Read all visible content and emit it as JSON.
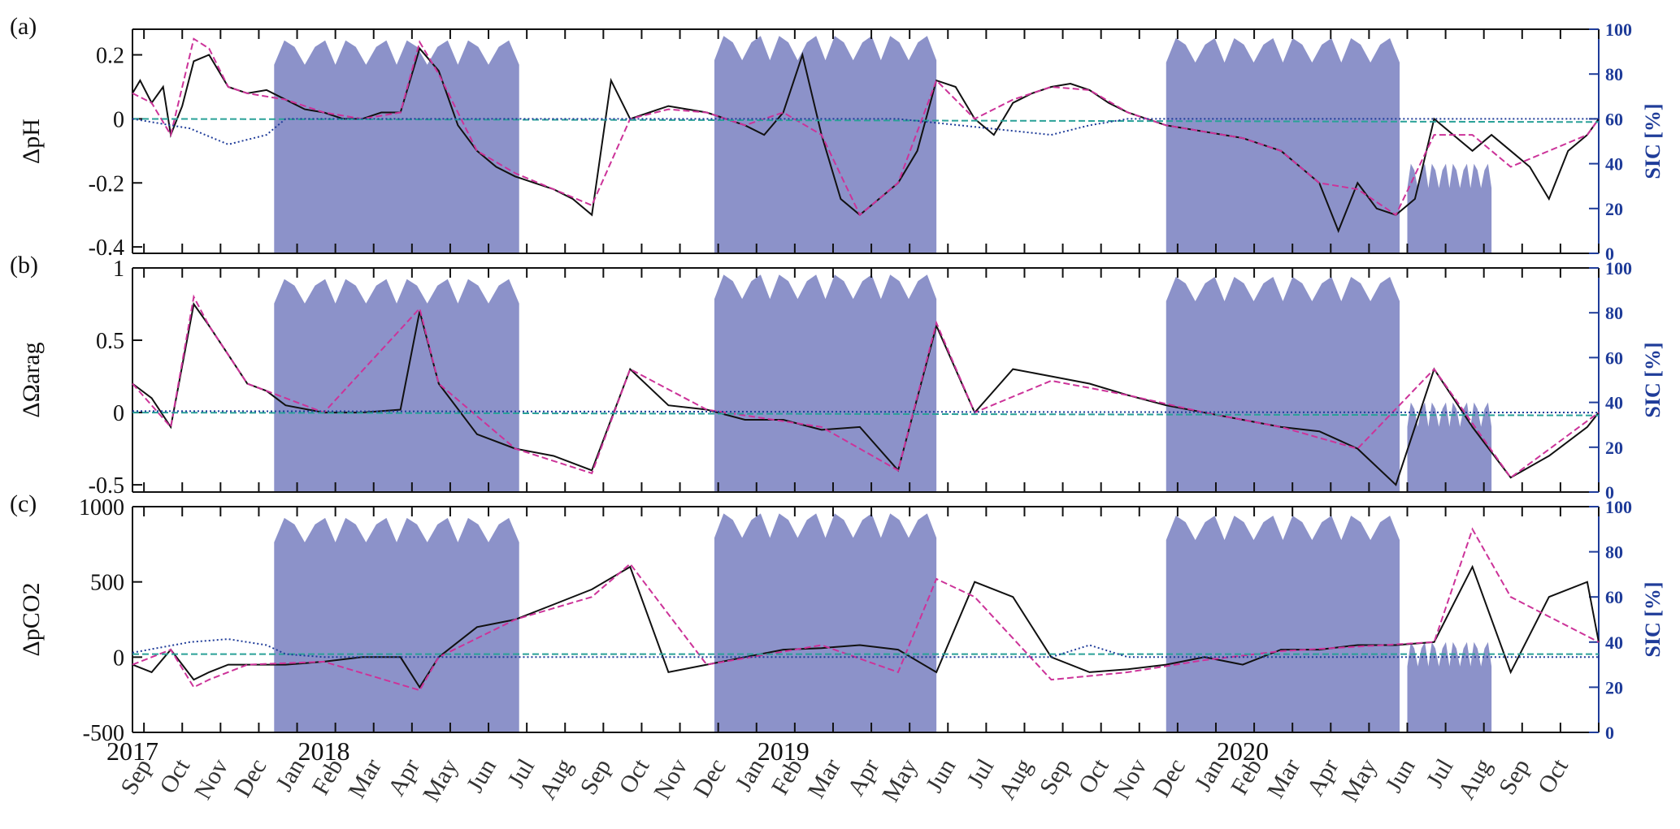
{
  "chart_data": [
    {
      "type": "line",
      "panel": "(a)",
      "ylabel": "ΔpH",
      "ylim": [
        -0.42,
        0.28
      ],
      "yticks": [
        -0.4,
        -0.2,
        0,
        0.2
      ],
      "ytick_labels": [
        "-0.4",
        "-0.2",
        "0",
        "0.2"
      ],
      "y2label": "SIC [%]",
      "y2lim": [
        0,
        100
      ],
      "y2ticks": [
        "0",
        "20",
        "40",
        "60",
        "80",
        "100"
      ],
      "series": [
        {
          "role": "black-solid",
          "color": "#111111",
          "x": [
            0,
            0.2,
            0.5,
            0.8,
            1.0,
            1.3,
            1.6,
            2.0,
            2.5,
            3.0,
            3.5,
            4.0,
            4.5,
            5.0,
            5.5,
            6.0,
            6.5,
            7.0,
            7.5,
            8.0,
            8.5,
            9.0,
            9.5,
            10.0,
            10.5,
            11.0,
            11.5,
            12.0,
            12.5,
            13.0,
            13.5,
            14.0,
            14.5,
            15.0,
            15.5,
            16.0,
            16.5,
            17.0,
            17.5,
            18.0,
            18.5,
            19.0,
            19.5,
            20.0,
            20.5,
            21.0,
            21.5,
            22.0,
            22.5,
            23.0,
            23.5,
            24.0,
            24.5,
            25.0,
            25.5,
            26.0,
            26.5,
            27.0,
            27.5,
            28.0,
            28.5,
            29.0,
            29.5,
            30.0,
            30.5,
            31.0,
            31.5,
            32.0,
            32.5,
            33.0,
            33.5,
            34.0,
            34.5,
            35.0,
            35.5,
            36.0,
            36.5,
            37.0,
            37.5,
            38.0,
            38.3
          ],
          "y": [
            0.08,
            0.12,
            0.05,
            0.1,
            -0.05,
            0.04,
            0.18,
            0.2,
            0.1,
            0.08,
            0.09,
            0.06,
            0.03,
            0.02,
            0.0,
            0.0,
            0.02,
            0.02,
            0.22,
            0.15,
            -0.02,
            -0.1,
            -0.15,
            -0.18,
            -0.2,
            -0.22,
            -0.25,
            -0.3,
            0.12,
            0.0,
            0.02,
            0.04,
            0.03,
            0.02,
            0.0,
            -0.02,
            -0.05,
            0.02,
            0.2,
            -0.05,
            -0.25,
            -0.3,
            -0.25,
            -0.2,
            -0.1,
            0.12,
            0.1,
            0.0,
            -0.05,
            0.05,
            0.08,
            0.1,
            0.11,
            0.09,
            0.05,
            0.02,
            0.0,
            -0.02,
            -0.03,
            -0.04,
            -0.05,
            -0.06,
            -0.08,
            -0.1,
            -0.15,
            -0.2,
            -0.35,
            -0.2,
            -0.28,
            -0.3,
            -0.25,
            0.0,
            -0.05,
            -0.1,
            -0.05,
            -0.1,
            -0.15,
            -0.25,
            -0.1,
            -0.05,
            0.0
          ]
        },
        {
          "role": "magenta-dashed",
          "color": "#cc3399",
          "x": [
            0,
            0.5,
            1.0,
            1.6,
            2.0,
            2.5,
            3.0,
            4.0,
            5.0,
            6.0,
            7.0,
            7.5,
            8.0,
            9.0,
            10.0,
            11.0,
            12.0,
            13.0,
            14.0,
            15.0,
            16.0,
            17.0,
            18.0,
            19.0,
            20.0,
            21.0,
            22.0,
            23.0,
            24.0,
            25.0,
            26.0,
            27.0,
            28.0,
            29.0,
            30.0,
            31.0,
            32.0,
            33.0,
            34.0,
            35.0,
            36.0,
            37.0,
            38.0,
            38.3
          ],
          "y": [
            0.08,
            0.05,
            -0.05,
            0.25,
            0.22,
            0.1,
            0.08,
            0.06,
            0.02,
            0.0,
            0.02,
            0.24,
            0.14,
            -0.1,
            -0.17,
            -0.22,
            -0.27,
            0.0,
            0.03,
            0.02,
            -0.02,
            0.02,
            -0.05,
            -0.3,
            -0.2,
            0.12,
            0.0,
            0.06,
            0.1,
            0.09,
            0.02,
            -0.02,
            -0.04,
            -0.06,
            -0.1,
            -0.2,
            -0.22,
            -0.3,
            -0.05,
            -0.05,
            -0.15,
            -0.1,
            -0.05,
            0.0
          ]
        },
        {
          "role": "teal-dashed",
          "color": "#2aa198",
          "x": [
            0,
            38.3
          ],
          "y": [
            0.0,
            -0.01
          ]
        },
        {
          "role": "blue-dotted",
          "color": "#1f3c99",
          "x": [
            0,
            1.5,
            2.5,
            3.5,
            4.0,
            5.0,
            10.0,
            20.0,
            24.0,
            25.0,
            26.0,
            30.0,
            38.3
          ],
          "y": [
            0.0,
            -0.03,
            -0.08,
            -0.05,
            0.0,
            0.0,
            0.0,
            0.0,
            -0.05,
            -0.02,
            0.0,
            0.0,
            0.0
          ]
        }
      ]
    },
    {
      "type": "line",
      "panel": "(b)",
      "ylabel": "ΔΩarag",
      "ylim": [
        -0.55,
        1.0
      ],
      "yticks": [
        -0.5,
        0,
        0.5,
        1
      ],
      "ytick_labels": [
        "-0.5",
        "0",
        "0.5",
        "1"
      ],
      "y2label": "SIC [%]",
      "y2lim": [
        0,
        100
      ],
      "y2ticks": [
        "0",
        "20",
        "40",
        "60",
        "80",
        "100"
      ],
      "series": [
        {
          "role": "black-solid",
          "color": "#111111",
          "x": [
            0,
            0.5,
            1.0,
            1.6,
            2.0,
            2.5,
            3.0,
            3.5,
            4.0,
            5.0,
            6.0,
            7.0,
            7.5,
            8.0,
            9.0,
            10.0,
            11.0,
            12.0,
            13.0,
            14.0,
            15.0,
            16.0,
            17.0,
            18.0,
            19.0,
            20.0,
            21.0,
            22.0,
            23.0,
            24.0,
            25.0,
            26.0,
            27.0,
            28.0,
            29.0,
            30.0,
            31.0,
            32.0,
            33.0,
            34.0,
            35.0,
            36.0,
            37.0,
            38.0,
            38.3
          ],
          "y": [
            0.2,
            0.1,
            -0.1,
            0.75,
            0.6,
            0.4,
            0.2,
            0.15,
            0.05,
            0.0,
            0.0,
            0.02,
            0.7,
            0.2,
            -0.15,
            -0.25,
            -0.3,
            -0.4,
            0.3,
            0.05,
            0.02,
            -0.05,
            -0.05,
            -0.12,
            -0.1,
            -0.4,
            0.6,
            0.0,
            0.3,
            0.25,
            0.2,
            0.12,
            0.05,
            0.0,
            -0.05,
            -0.1,
            -0.13,
            -0.25,
            -0.5,
            0.3,
            -0.1,
            -0.45,
            -0.3,
            -0.1,
            0.0
          ]
        },
        {
          "role": "magenta-dashed",
          "color": "#cc3399",
          "x": [
            0,
            1.0,
            1.6,
            2.0,
            3.0,
            5.0,
            7.5,
            8.0,
            10.0,
            12.0,
            13.0,
            15.0,
            18.0,
            20.0,
            21.0,
            22.0,
            24.0,
            26.0,
            28.0,
            30.0,
            32.0,
            34.0,
            36.0,
            38.3
          ],
          "y": [
            0.2,
            -0.1,
            0.8,
            0.6,
            0.2,
            0.0,
            0.72,
            0.2,
            -0.25,
            -0.42,
            0.3,
            0.02,
            -0.1,
            -0.4,
            0.62,
            0.0,
            0.22,
            0.12,
            0.0,
            -0.1,
            -0.25,
            0.3,
            -0.45,
            0.0
          ]
        },
        {
          "role": "teal-dashed",
          "color": "#2aa198",
          "x": [
            0,
            38.3
          ],
          "y": [
            0.0,
            -0.02
          ]
        },
        {
          "role": "blue-dotted",
          "color": "#1f3c99",
          "x": [
            0,
            38.3
          ],
          "y": [
            0.01,
            0.0
          ]
        }
      ]
    },
    {
      "type": "line",
      "panel": "(c)",
      "ylabel": "ΔpCO2",
      "ylim": [
        -500,
        1000
      ],
      "yticks": [
        -500,
        0,
        500,
        1000
      ],
      "ytick_labels": [
        "-500",
        "0",
        "500",
        "1000"
      ],
      "y2label": "SIC [%]",
      "y2lim": [
        0,
        100
      ],
      "y2ticks": [
        "0",
        "20",
        "40",
        "60",
        "80",
        "100"
      ],
      "series": [
        {
          "role": "black-solid",
          "color": "#111111",
          "x": [
            0,
            0.5,
            1.0,
            1.6,
            2.0,
            2.5,
            3.0,
            4.0,
            5.0,
            6.0,
            7.0,
            7.5,
            8.0,
            9.0,
            10.0,
            11.0,
            12.0,
            13.0,
            14.0,
            15.0,
            16.0,
            17.0,
            18.0,
            19.0,
            20.0,
            21.0,
            22.0,
            23.0,
            24.0,
            25.0,
            26.0,
            27.0,
            28.0,
            29.0,
            30.0,
            31.0,
            32.0,
            33.0,
            34.0,
            35.0,
            36.0,
            37.0,
            38.0,
            38.3
          ],
          "y": [
            -50,
            -100,
            50,
            -150,
            -100,
            -50,
            -50,
            -50,
            -30,
            0,
            0,
            -200,
            0,
            200,
            250,
            350,
            450,
            600,
            -100,
            -50,
            0,
            50,
            60,
            80,
            50,
            -100,
            500,
            400,
            0,
            -100,
            -80,
            -50,
            0,
            -50,
            50,
            50,
            80,
            80,
            100,
            600,
            -100,
            400,
            500,
            100
          ]
        },
        {
          "role": "magenta-dashed",
          "color": "#cc3399",
          "x": [
            0,
            1.0,
            1.6,
            2.0,
            3.0,
            5.0,
            7.5,
            8.0,
            10.0,
            12.0,
            13.0,
            15.0,
            18.0,
            20.0,
            21.0,
            22.0,
            24.0,
            26.0,
            28.0,
            30.0,
            32.0,
            34.0,
            35.0,
            36.0,
            38.3
          ],
          "y": [
            -50,
            50,
            -200,
            -150,
            -50,
            -30,
            -220,
            0,
            250,
            400,
            620,
            -50,
            80,
            -100,
            520,
            400,
            -150,
            -100,
            -20,
            40,
            70,
            100,
            850,
            400,
            100
          ]
        },
        {
          "role": "teal-dashed",
          "color": "#2aa198",
          "x": [
            0,
            38.3
          ],
          "y": [
            20,
            20
          ]
        },
        {
          "role": "blue-dotted",
          "color": "#1f3c99",
          "x": [
            0,
            1.5,
            2.5,
            3.5,
            4.0,
            5.0,
            12.0,
            24.0,
            25.0,
            26.0,
            38.3
          ],
          "y": [
            30,
            100,
            120,
            80,
            20,
            0,
            0,
            0,
            80,
            0,
            0
          ]
        }
      ]
    }
  ],
  "sic_regions": [
    {
      "x_start": 3.7,
      "x_end": 10.1,
      "level": 95
    },
    {
      "x_start": 15.2,
      "x_end": 21.0,
      "level": 97
    },
    {
      "x_start": 27.0,
      "x_end": 33.1,
      "level": 96
    },
    {
      "x_start": 33.3,
      "x_end": 35.5,
      "level": 40
    }
  ],
  "shared_x": {
    "label_unit": "month",
    "months": [
      "Sep",
      "Oct",
      "Nov",
      "Dec",
      "Jan",
      "Feb",
      "Mar",
      "Apr",
      "May",
      "Jun",
      "Jul",
      "Aug",
      "Sep",
      "Oct",
      "Nov",
      "Dec",
      "Jan",
      "Feb",
      "Mar",
      "Apr",
      "May",
      "Jun",
      "Jul",
      "Aug",
      "Sep",
      "Oct",
      "Nov",
      "Dec",
      "Jan",
      "Feb",
      "Mar",
      "Apr",
      "May",
      "Jun",
      "Jul",
      "Aug",
      "Sep",
      "Oct"
    ],
    "years": [
      {
        "label": "2017",
        "at_month_index": -1
      },
      {
        "label": "2018",
        "at_month_index": 4
      },
      {
        "label": "2019",
        "at_month_index": 16
      },
      {
        "label": "2020",
        "at_month_index": 28
      }
    ]
  },
  "colors": {
    "sic_fill": "#8c92c9",
    "axis": "#111111",
    "right_axis": "#1f3c99"
  }
}
